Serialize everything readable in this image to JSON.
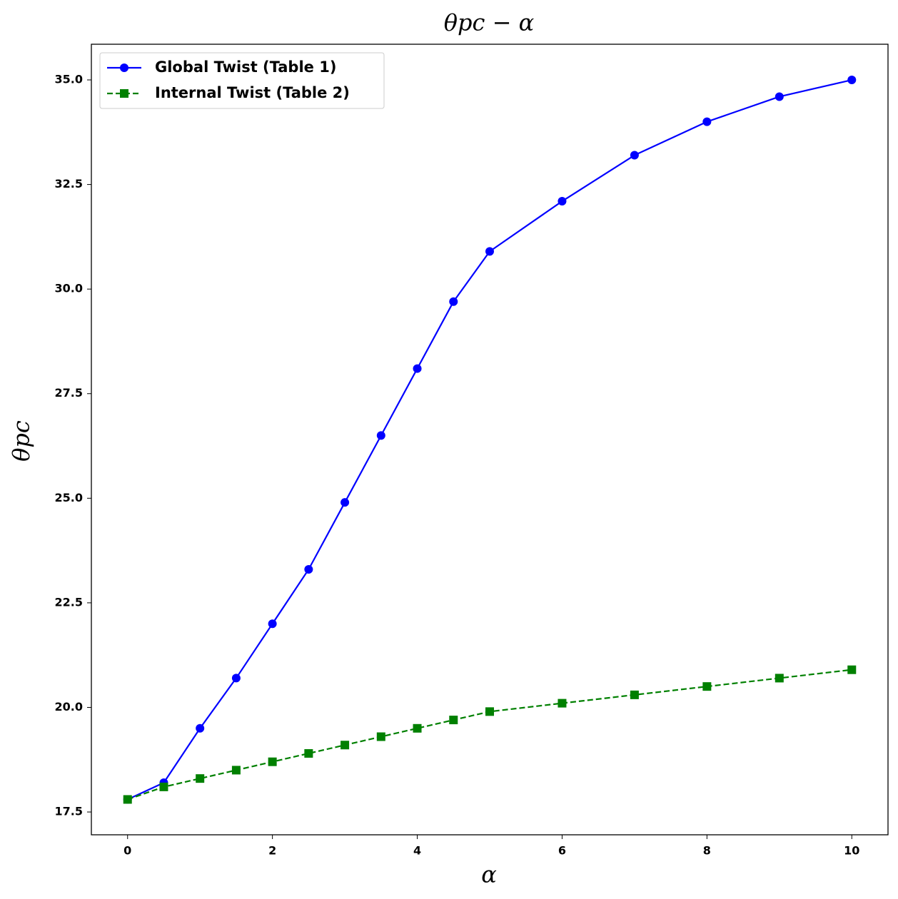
{
  "chart_data": {
    "type": "line",
    "title": "θpc − α",
    "x_label": "α",
    "y_label": "θpc",
    "x": [
      0,
      0.5,
      1,
      1.5,
      2,
      2.5,
      3,
      3.5,
      4,
      4.5,
      5,
      6,
      7,
      8,
      9,
      10
    ],
    "series": [
      {
        "name": "Global Twist (Table 1)",
        "color": "#0000ff",
        "linestyle": "solid",
        "marker": "circle",
        "values": [
          17.8,
          18.2,
          19.5,
          20.7,
          22.0,
          23.3,
          24.9,
          26.5,
          28.1,
          29.7,
          30.9,
          32.1,
          33.2,
          34.0,
          34.6,
          35.0
        ]
      },
      {
        "name": "Internal Twist (Table 2)",
        "color": "#008000",
        "linestyle": "dashed",
        "marker": "square",
        "values": [
          17.8,
          18.1,
          18.3,
          18.5,
          18.7,
          18.9,
          19.1,
          19.3,
          19.5,
          19.7,
          19.9,
          20.1,
          20.3,
          20.5,
          20.7,
          20.9
        ]
      }
    ],
    "xlim": [
      -0.5,
      10.5
    ],
    "ylim": [
      16.955,
      35.853
    ],
    "xticks": [
      0,
      2,
      4,
      6,
      8,
      10
    ],
    "yticks": [
      17.5,
      {
        "value": 20,
        "label": "20.0"
      },
      22.5,
      {
        "value": 25,
        "label": "25.0"
      },
      27.5,
      {
        "value": 30,
        "label": "30.0"
      },
      32.5,
      {
        "value": 35,
        "label": "35.0"
      }
    ],
    "legend": "upper left",
    "grid": false
  }
}
